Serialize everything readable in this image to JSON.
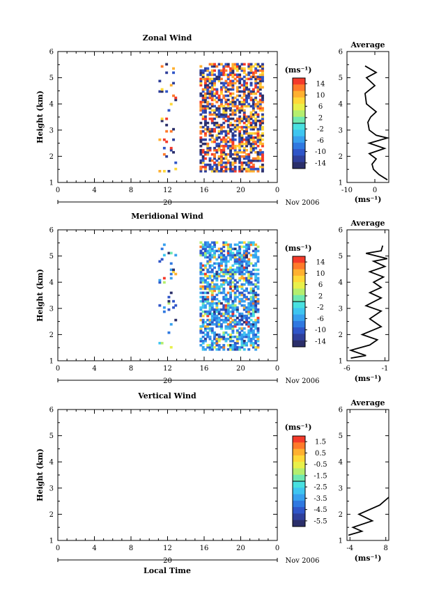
{
  "figure": {
    "month_label": "Nov 2006",
    "xlabel_bottom": "Local Time",
    "colorbar_unit": "(ms⁻¹)",
    "avg_unit": "(ms⁻¹)"
  },
  "palette": [
    "#2b2f6a",
    "#2f3f9a",
    "#2f55c8",
    "#2f78e0",
    "#38a0ee",
    "#3ec5f0",
    "#48e0e0",
    "#6fe8b0",
    "#b4ee6e",
    "#e8f04a",
    "#ffd838",
    "#ffb030",
    "#ff7a2a",
    "#f43a2a"
  ],
  "chart_data": [
    {
      "id": "zonal",
      "type": "heatmap",
      "title": "Zonal Wind",
      "ylabel": "Height (km)",
      "xlim": [
        0,
        24
      ],
      "ylim": [
        1,
        6
      ],
      "xticks": [
        "0",
        "4",
        "8",
        "12",
        "16",
        "20",
        "0"
      ],
      "xticks_minor": [
        1,
        2,
        3,
        5,
        6,
        7,
        9,
        10,
        11,
        13,
        14,
        15,
        17,
        18,
        19,
        21,
        22,
        23
      ],
      "day_label": "20",
      "yticks": [
        "1",
        "2",
        "3",
        "4",
        "5",
        "6"
      ],
      "colorbar": {
        "ticks": [
          "14",
          "10",
          "6",
          "2",
          "-2",
          "-6",
          "-10",
          "-14"
        ],
        "range": [
          -16,
          16
        ]
      },
      "data_extent": {
        "x": [
          11,
          22.5
        ],
        "y": [
          1.4,
          5.5
        ]
      },
      "sparse_range": [
        11,
        13
      ],
      "dense_range": [
        15.5,
        22.5
      ],
      "average": {
        "title": "Average",
        "xlim": [
          -10,
          5
        ],
        "xticks": [
          "-10",
          "0"
        ],
        "xtick_values": [
          -10,
          0
        ],
        "ylim": [
          1,
          6
        ],
        "profile": [
          [
            4.5,
            1.1
          ],
          [
            1.5,
            1.3
          ],
          [
            -0.5,
            1.5
          ],
          [
            -1,
            1.7
          ],
          [
            0.5,
            1.9
          ],
          [
            -2,
            2.1
          ],
          [
            3.5,
            2.3
          ],
          [
            -2,
            2.5
          ],
          [
            4.5,
            2.7
          ],
          [
            0.5,
            2.8
          ],
          [
            -2,
            3.0
          ],
          [
            -2.5,
            3.3
          ],
          [
            -1.5,
            3.5
          ],
          [
            0.5,
            3.7
          ],
          [
            -3,
            4.0
          ],
          [
            -3.5,
            4.4
          ],
          [
            0,
            4.7
          ],
          [
            -3,
            5.0
          ],
          [
            0.5,
            5.2
          ],
          [
            -3.5,
            5.45
          ]
        ]
      }
    },
    {
      "id": "meridional",
      "type": "heatmap",
      "title": "Meridional Wind",
      "ylabel": "Height (km)",
      "xlim": [
        0,
        24
      ],
      "ylim": [
        1,
        6
      ],
      "xticks": [
        "0",
        "4",
        "8",
        "12",
        "16",
        "20",
        "0"
      ],
      "xticks_minor": [
        1,
        2,
        3,
        5,
        6,
        7,
        9,
        10,
        11,
        13,
        14,
        15,
        17,
        18,
        19,
        21,
        22,
        23
      ],
      "day_label": "20",
      "yticks": [
        "1",
        "2",
        "3",
        "4",
        "5",
        "6"
      ],
      "colorbar": {
        "ticks": [
          "14",
          "10",
          "6",
          "2",
          "-2",
          "-6",
          "-10",
          "-14"
        ],
        "range": [
          -16,
          16
        ]
      },
      "data_extent": {
        "x": [
          11,
          22
        ],
        "y": [
          1.4,
          5.5
        ]
      },
      "sparse_range": [
        11,
        13
      ],
      "dense_range": [
        15.5,
        22
      ],
      "average": {
        "title": "Average",
        "xlim": [
          -6,
          -0.5
        ],
        "xticks": [
          "-6",
          "-1"
        ],
        "xtick_values": [
          -6,
          -1
        ],
        "ylim": [
          1,
          6
        ],
        "profile": [
          [
            -5.5,
            1.1
          ],
          [
            -3.5,
            1.2
          ],
          [
            -5.5,
            1.4
          ],
          [
            -3,
            1.6
          ],
          [
            -2,
            1.8
          ],
          [
            -4,
            2.0
          ],
          [
            -1.5,
            2.3
          ],
          [
            -3,
            2.6
          ],
          [
            -1.5,
            2.9
          ],
          [
            -3.5,
            3.1
          ],
          [
            -1.5,
            3.4
          ],
          [
            -3,
            3.6
          ],
          [
            -1.5,
            3.8
          ],
          [
            -2.5,
            4.0
          ],
          [
            -1.2,
            4.2
          ],
          [
            -3,
            4.4
          ],
          [
            -1,
            4.6
          ],
          [
            -2.5,
            4.8
          ],
          [
            -0.7,
            4.9
          ],
          [
            -3.5,
            5.1
          ],
          [
            -1.5,
            5.2
          ],
          [
            -1.3,
            5.4
          ]
        ]
      }
    },
    {
      "id": "vertical",
      "type": "heatmap",
      "title": "Vertical Wind",
      "ylabel": "Height (km)",
      "xlim": [
        0,
        24
      ],
      "ylim": [
        1,
        6
      ],
      "xticks": [
        "0",
        "4",
        "8",
        "12",
        "16",
        "20",
        "0"
      ],
      "xticks_minor": [
        1,
        2,
        3,
        5,
        6,
        7,
        9,
        10,
        11,
        13,
        14,
        15,
        17,
        18,
        19,
        21,
        22,
        23
      ],
      "day_label": "20",
      "yticks": [
        "1",
        "2",
        "3",
        "4",
        "5",
        "6"
      ],
      "colorbar": {
        "ticks": [
          "1.5",
          "0.5",
          "-0.5",
          "-1.5",
          "-2.5",
          "-3.5",
          "-4.5",
          "-5.5"
        ],
        "range": [
          -6,
          2
        ]
      },
      "data_extent": null,
      "average": {
        "title": "Average",
        "xlim": [
          -5,
          9
        ],
        "xticks": [
          "-4",
          "8"
        ],
        "xtick_values": [
          -4,
          8
        ],
        "ylim": [
          1,
          6
        ],
        "profile": [
          [
            -4.5,
            1.2
          ],
          [
            0,
            1.35
          ],
          [
            -3,
            1.5
          ],
          [
            3.5,
            1.75
          ],
          [
            -1,
            2.0
          ],
          [
            6,
            2.35
          ],
          [
            9,
            2.65
          ]
        ]
      }
    }
  ]
}
